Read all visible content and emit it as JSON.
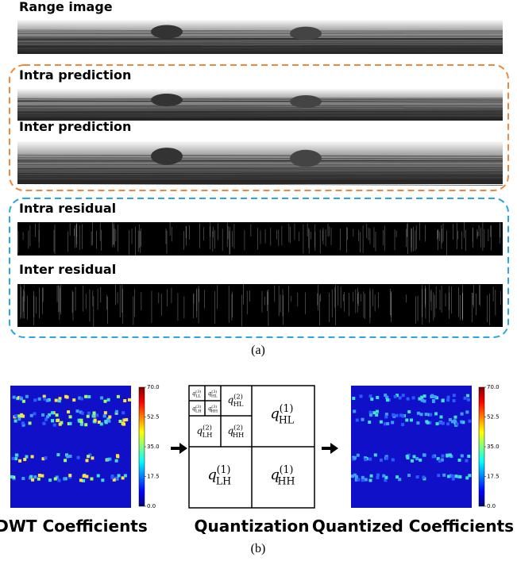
{
  "panel_a": {
    "strips": [
      {
        "label": "Range image"
      },
      {
        "label": "Intra prediction"
      },
      {
        "label": "Inter prediction"
      },
      {
        "label": "Intra residual"
      },
      {
        "label": "Inter residual"
      }
    ],
    "caption": "(a)"
  },
  "panel_b": {
    "colorbar_ticks": [
      "70.0",
      "52.5",
      "35.0",
      "17.5",
      "0.0"
    ],
    "quantization_cells": [
      {
        "symbol": "q",
        "sub": "LL",
        "sup": "(3)"
      },
      {
        "symbol": "q",
        "sub": "HL",
        "sup": "(3)"
      },
      {
        "symbol": "q",
        "sub": "LH",
        "sup": "(3)"
      },
      {
        "symbol": "q",
        "sub": "HH",
        "sup": "(3)"
      },
      {
        "symbol": "q",
        "sub": "HL",
        "sup": "(2)"
      },
      {
        "symbol": "q",
        "sub": "LH",
        "sup": "(2)"
      },
      {
        "symbol": "q",
        "sub": "HH",
        "sup": "(2)"
      },
      {
        "symbol": "q",
        "sub": "HL",
        "sup": "(1)"
      },
      {
        "symbol": "q",
        "sub": "LH",
        "sup": "(1)"
      },
      {
        "symbol": "q",
        "sub": "HH",
        "sup": "(1)"
      }
    ],
    "labels": [
      "DWT Coefficients",
      "Quantization",
      "Quantized Coefficients"
    ],
    "caption": "(b)"
  }
}
